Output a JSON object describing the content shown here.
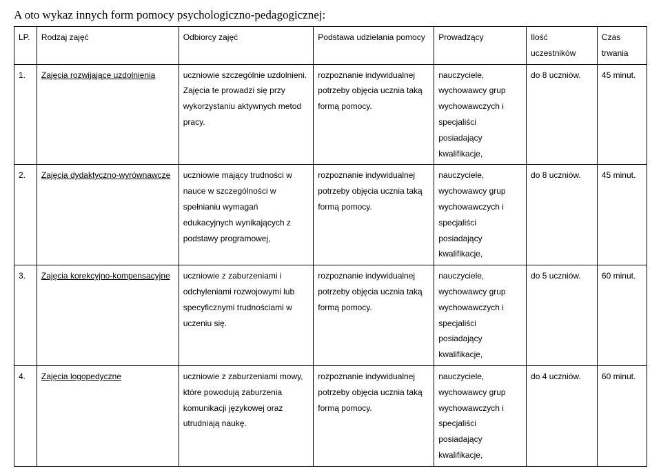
{
  "heading": "A oto wykaz innych form pomocy psychologiczno-pedagogicznej:",
  "headers": {
    "lp": "LP.",
    "rodzaj": "Rodzaj zajęć",
    "odbiorcy": "Odbiorcy zajęć",
    "podstawa": "Podstawa udzielania pomocy",
    "prowadzacy": "Prowadzący",
    "ilosc": "Ilość uczestników",
    "czas": "Czas trwania"
  },
  "rows": [
    {
      "lp": "1.",
      "rodzaj": "Zajęcia rozwijające uzdolnienia",
      "odbiorcy": "uczniowie szczególnie uzdolnieni. Zajęcia te prowadzi się przy wykorzystaniu aktywnych metod pracy.",
      "podstawa": "rozpoznanie indywidualnej potrzeby objęcia ucznia taką formą pomocy.",
      "prowadzacy": "nauczyciele, wychowawcy grup wychowawczych i specjaliści posiadający kwalifikacje,",
      "ilosc": "do 8 uczniów.",
      "czas": "45 minut."
    },
    {
      "lp": "2.",
      "rodzaj": "Zajęcia dydaktyczno-wyrównawcze",
      "odbiorcy": "uczniowie mający trudności w nauce w szczególności w spełnianiu wymagań edukacyjnych wynikających z podstawy programowej,",
      "podstawa": "rozpoznanie indywidualnej potrzeby objęcia ucznia taką formą pomocy.",
      "prowadzacy": "nauczyciele, wychowawcy grup wychowawczych i specjaliści posiadający kwalifikacje,",
      "ilosc": "do 8 uczniów.",
      "czas": "45 minut."
    },
    {
      "lp": "3.",
      "rodzaj": "Zajęcia korekcyjno-kompensacyjne",
      "odbiorcy": "uczniowie z zaburzeniami i odchyleniami rozwojowymi lub specyficznymi trudnościami w uczeniu się.",
      "podstawa": "rozpoznanie indywidualnej potrzeby objęcia ucznia taką formą pomocy.",
      "prowadzacy": " nauczyciele, wychowawcy grup wychowawczych i specjaliści posiadający kwalifikacje,",
      "ilosc": "do 5 uczniów.",
      "czas": "60 minut."
    },
    {
      "lp": "4.",
      "rodzaj": "Zajęcia logopedyczne",
      "odbiorcy": "uczniowie z zaburzeniami mowy, które powodują zaburzenia komunikacji językowej oraz utrudniają naukę.",
      "podstawa": "rozpoznanie indywidualnej potrzeby objęcia ucznia taką formą pomocy.",
      "prowadzacy": " nauczyciele, wychowawcy grup wychowawczych i specjaliści posiadający kwalifikacje,",
      "ilosc": "do 4 uczniów.",
      "czas": "60 minut."
    }
  ]
}
